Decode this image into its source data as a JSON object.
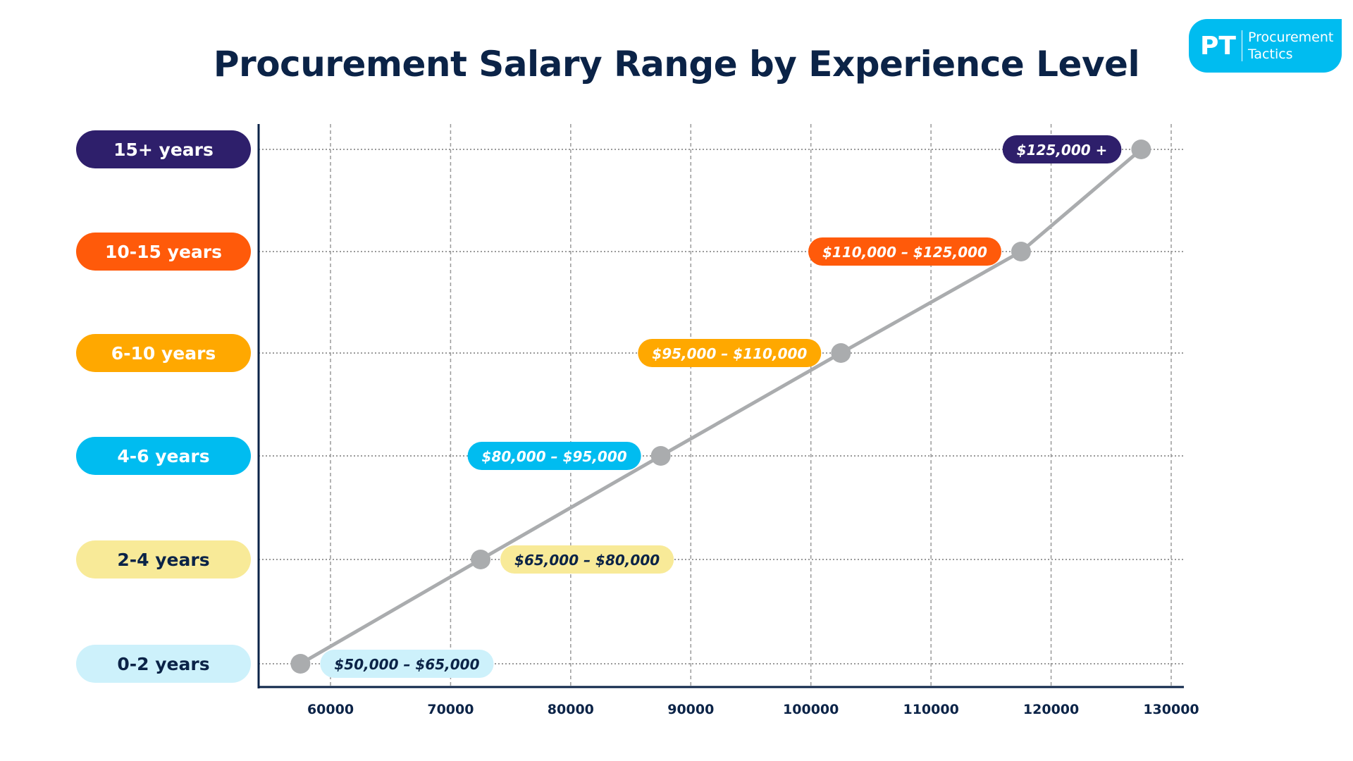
{
  "chart_data": {
    "type": "line",
    "title": "Procurement Salary Range by Experience Level",
    "xlabel": "",
    "ylabel": "",
    "xlim": [
      54000,
      131000
    ],
    "x_ticks": [
      60000,
      70000,
      80000,
      90000,
      100000,
      110000,
      120000,
      130000
    ],
    "grid": true,
    "categories": [
      "0-2 years",
      "2-4 years",
      "4-6 years",
      "6-10 years",
      "10-15 years",
      "15+ years"
    ],
    "values": [
      57500,
      72500,
      87500,
      102500,
      117500,
      127500
    ],
    "data_labels": [
      "$50,000 – $65,000",
      "$65,000 – $80,000",
      "$80,000 – $95,000",
      "$95,000 – $110,000",
      "$110,000 – $125,000",
      "$125,000 +"
    ],
    "category_colors": [
      "#cdf1fb",
      "#f8ea98",
      "#00bcf0",
      "#ffa800",
      "#ff5a0a",
      "#2e1f6b"
    ],
    "label_text_colors": [
      "#0b2347",
      "#0b2347",
      "#ffffff",
      "#ffffff",
      "#ffffff",
      "#ffffff"
    ],
    "line_color": "#aaacae",
    "axis_color": "#0b2347"
  },
  "logo": {
    "mark": "PT",
    "line1": "Procurement",
    "line2": "Tactics",
    "color": "#00bcf0"
  }
}
